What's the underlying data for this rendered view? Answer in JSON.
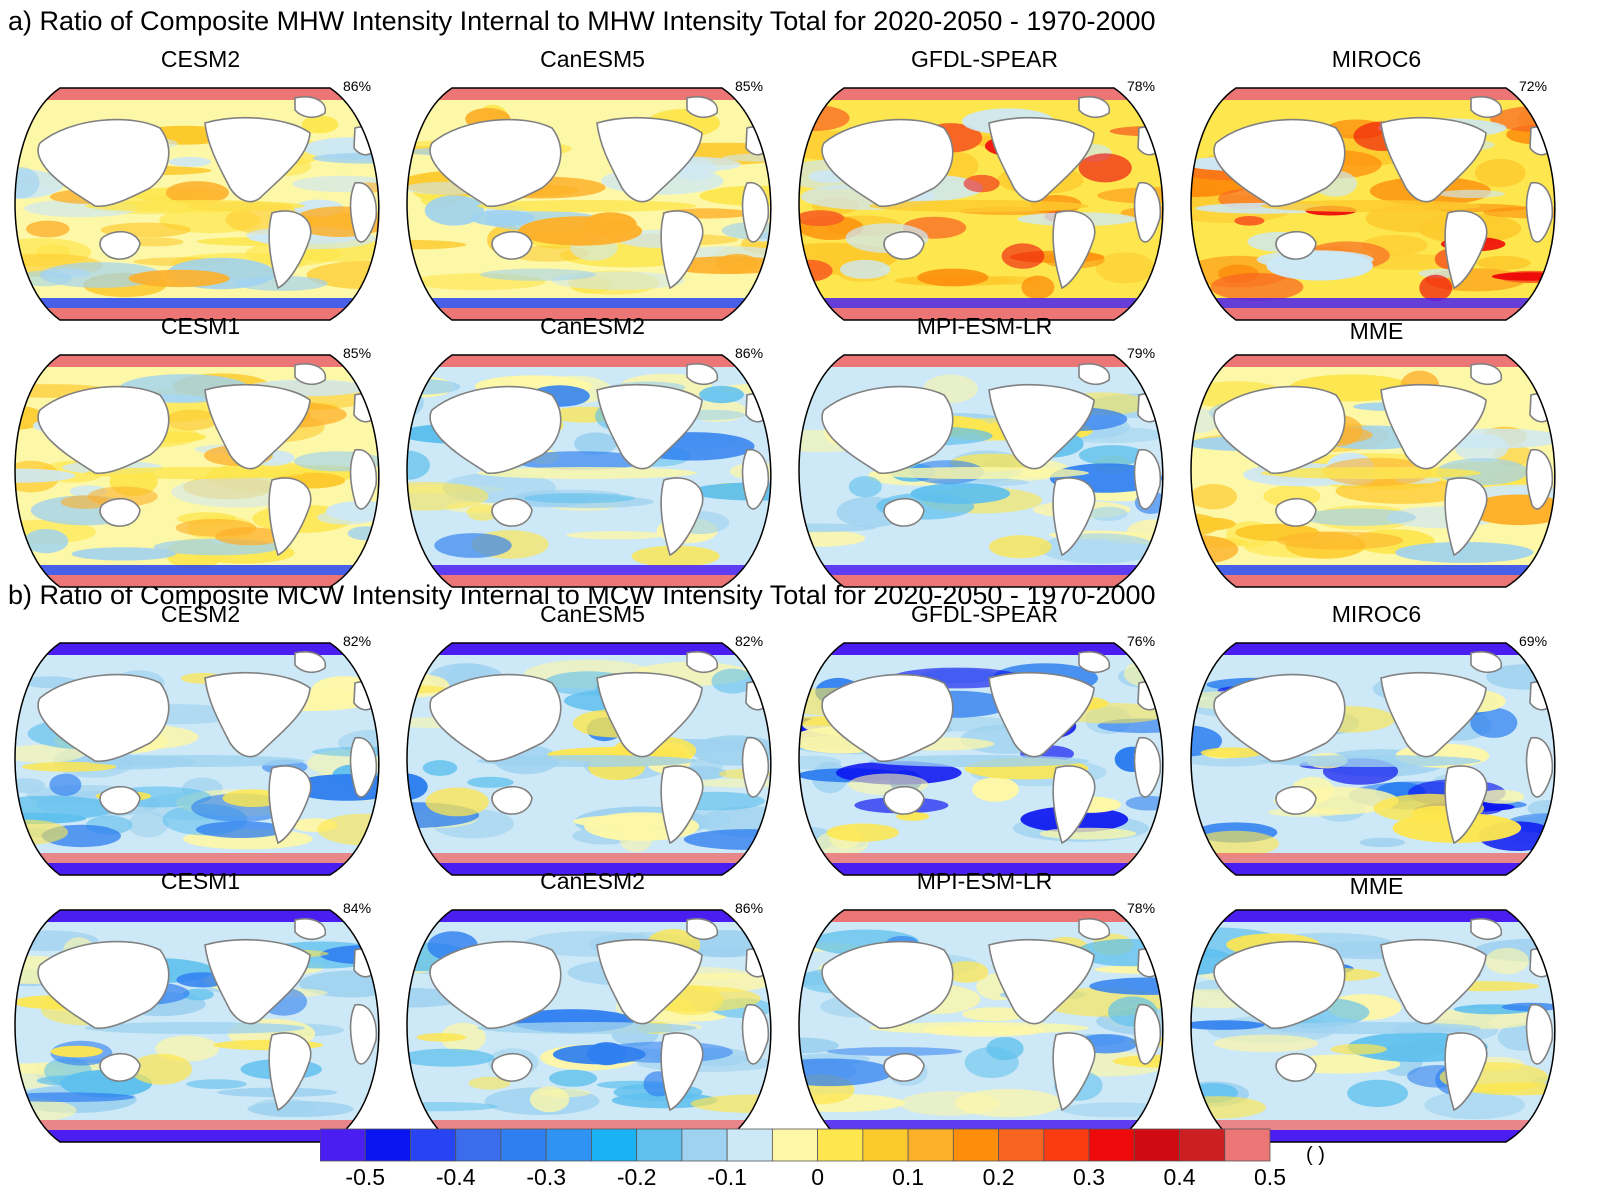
{
  "figure": {
    "section_a": {
      "title": "a) Ratio of Composite MHW Intensity Internal to MHW Intensity Total for 2020-2050 - 1970-2000",
      "panels": [
        {
          "model": "CESM2",
          "percent": "86%",
          "pattern": "warm"
        },
        {
          "model": "CanESM5",
          "percent": "85%",
          "pattern": "warm"
        },
        {
          "model": "GFDL-SPEAR",
          "percent": "78%",
          "pattern": "hot"
        },
        {
          "model": "MIROC6",
          "percent": "72%",
          "pattern": "hot"
        },
        {
          "model": "CESM1",
          "percent": "85%",
          "pattern": "warm"
        },
        {
          "model": "CanESM2",
          "percent": "86%",
          "pattern": "mixed"
        },
        {
          "model": "MPI-ESM-LR",
          "percent": "79%",
          "pattern": "mixed"
        },
        {
          "model": "MME",
          "percent": "",
          "pattern": "warm"
        }
      ]
    },
    "section_b": {
      "title": "b) Ratio of Composite MCW Intensity Internal to MCW Intensity Total for 2020-2050 - 1970-2000",
      "panels": [
        {
          "model": "CESM2",
          "percent": "82%",
          "pattern": "cool"
        },
        {
          "model": "CanESM5",
          "percent": "82%",
          "pattern": "cool"
        },
        {
          "model": "GFDL-SPEAR",
          "percent": "76%",
          "pattern": "cold"
        },
        {
          "model": "MIROC6",
          "percent": "69%",
          "pattern": "cold"
        },
        {
          "model": "CESM1",
          "percent": "84%",
          "pattern": "cool"
        },
        {
          "model": "CanESM2",
          "percent": "86%",
          "pattern": "cool"
        },
        {
          "model": "MPI-ESM-LR",
          "percent": "78%",
          "pattern": "mixed"
        },
        {
          "model": "MME",
          "percent": "",
          "pattern": "cool"
        }
      ]
    }
  },
  "colorbar": {
    "colors": [
      "#4a1ef0",
      "#0a14f0",
      "#2844f2",
      "#3a6cec",
      "#2f7ff0",
      "#2e93f3",
      "#19b2f5",
      "#5fc0ee",
      "#9fd2f0",
      "#cde8f6",
      "#fdf7a8",
      "#fde64e",
      "#fdca2e",
      "#fdb02a",
      "#fd8e0c",
      "#f86422",
      "#fb3b12",
      "#ee0a0a",
      "#cf0a12",
      "#cc1f22",
      "#ec7676"
    ],
    "tick_labels": [
      "-0.5",
      "-0.4",
      "-0.3",
      "-0.2",
      "-0.1",
      "0",
      "0.1",
      "0.2",
      "0.3",
      "0.4",
      "0.5"
    ],
    "units": "( )"
  }
}
